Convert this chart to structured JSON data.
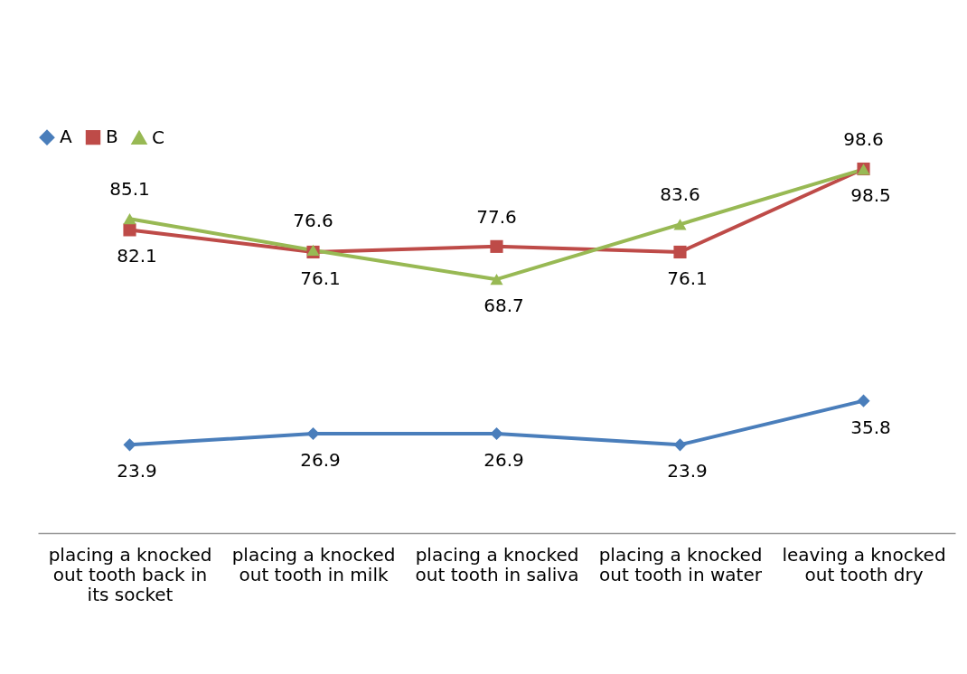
{
  "chart_data": {
    "type": "line",
    "categories": [
      "placing a knocked out tooth back in its socket",
      "placing a knocked out tooth in milk",
      "placing a knocked out tooth in saliva",
      "placing a knocked out tooth in water",
      "leaving a knocked out tooth dry"
    ],
    "series": [
      {
        "name": "A",
        "color": "#4a7ebb",
        "marker": "diamond",
        "values": [
          23.9,
          26.9,
          26.9,
          23.9,
          35.8
        ]
      },
      {
        "name": "B",
        "color": "#be4b48",
        "marker": "square",
        "values": [
          82.1,
          76.1,
          77.6,
          76.1,
          98.6
        ]
      },
      {
        "name": "C",
        "color": "#98b954",
        "marker": "triangle",
        "values": [
          85.1,
          76.6,
          68.7,
          83.6,
          98.5
        ]
      }
    ],
    "tick_labels": "x",
    "grid": false,
    "legend": "top",
    "data_labels": true,
    "line_style": "solid"
  }
}
